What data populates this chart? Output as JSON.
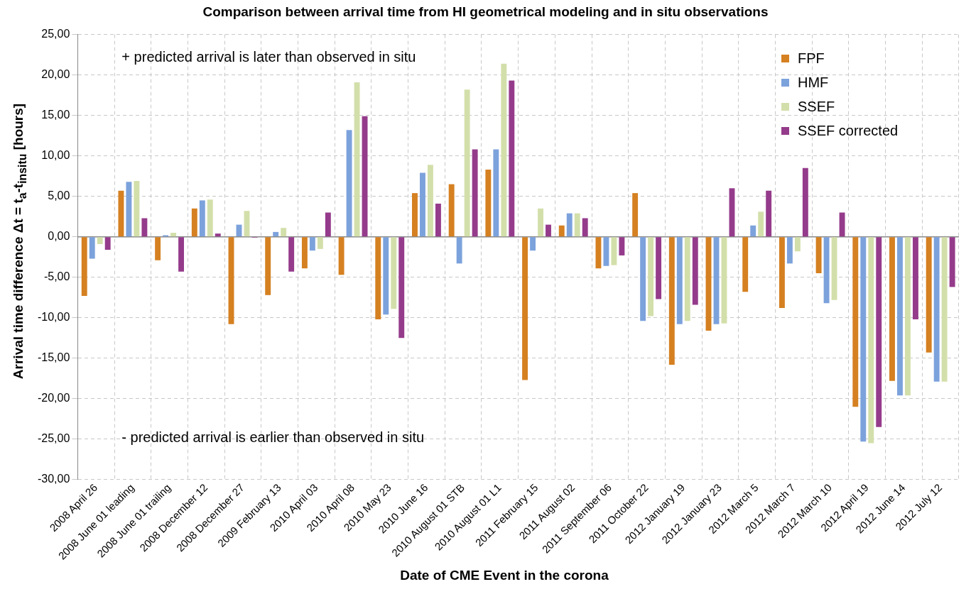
{
  "chart_data": {
    "type": "bar",
    "title": "Comparison between arrival time from HI geometrical modeling and in situ observations",
    "xlabel": "Date of CME Event in the corona",
    "ylabel": "Arrival time difference  Δt = t$_{a}$-t$_{insitu}$  [hours]",
    "categories": [
      "2008 April 26",
      "2008 June 01 leading",
      "2008 June 01 trailing",
      "2008 December 12",
      "2008 December 27",
      "2009 February 13",
      "2010 April 03",
      "2010 April 08",
      "2010 May 23",
      "2010 June 16",
      "2010 August 01 STB",
      "2010 August 01 L1",
      "2011 February 15",
      "2011 August 02",
      "2011 September 06",
      "2011 October 22",
      "2012 January 19",
      "2012 January 23",
      "2012 March 5",
      "2012 March 7",
      "2012 March 10",
      "2012 April 19",
      "2012 June 14",
      "2012 July 12"
    ],
    "series": [
      {
        "name": "FPF",
        "color": "#d58021",
        "values": [
          -7.3,
          5.7,
          -2.9,
          3.5,
          -10.8,
          -7.2,
          -3.9,
          -4.7,
          -10.2,
          5.4,
          6.5,
          8.3,
          -17.7,
          1.4,
          -3.9,
          5.4,
          -15.8,
          -11.6,
          -6.8,
          -8.8,
          -4.5,
          -21.0,
          -17.8,
          -14.3
        ]
      },
      {
        "name": "HMF",
        "color": "#7ca2dc",
        "values": [
          -2.7,
          6.8,
          0.2,
          4.5,
          1.5,
          0.6,
          -1.7,
          13.2,
          -9.6,
          7.9,
          -3.3,
          10.8,
          -1.7,
          2.9,
          -3.6,
          -10.4,
          -10.8,
          -10.8,
          1.4,
          -3.3,
          -8.2,
          -25.3,
          -19.6,
          -17.9
        ]
      },
      {
        "name": "SSEF",
        "color": "#d3dfaa",
        "values": [
          -0.9,
          6.9,
          0.5,
          4.6,
          3.2,
          1.1,
          -1.5,
          19.1,
          -8.9,
          8.9,
          18.2,
          21.4,
          3.5,
          2.9,
          -3.5,
          -9.8,
          -10.4,
          -10.7,
          3.1,
          -1.8,
          -7.8,
          -25.5,
          -19.6,
          -17.9
        ]
      },
      {
        "name": "SSEF corrected",
        "color": "#953b8b",
        "values": [
          -1.6,
          2.3,
          -4.3,
          0.4,
          -0.1,
          -4.3,
          3.0,
          14.9,
          -12.5,
          4.1,
          10.8,
          19.3,
          1.5,
          2.3,
          -2.3,
          -7.7,
          -8.4,
          6.0,
          5.7,
          8.5,
          3.0,
          -23.5,
          -10.2,
          -6.2
        ]
      }
    ],
    "ylim": [
      -30,
      25
    ],
    "yticks": [
      {
        "value": -30,
        "label": "-30,00"
      },
      {
        "value": -25,
        "label": "-25,00"
      },
      {
        "value": -20,
        "label": "-20,00"
      },
      {
        "value": -15,
        "label": "-15,00"
      },
      {
        "value": -10,
        "label": "-10,00"
      },
      {
        "value": -5,
        "label": "-5,00"
      },
      {
        "value": 0,
        "label": "0,00"
      },
      {
        "value": 5,
        "label": "5,00"
      },
      {
        "value": 10,
        "label": "10,00"
      },
      {
        "value": 15,
        "label": "15,00"
      },
      {
        "value": 20,
        "label": "20,00"
      },
      {
        "value": 25,
        "label": "25,00"
      }
    ],
    "annotations": [
      "+ predicted arrival is later than observed in situ",
      "- predicted arrival is earlier than observed in situ"
    ],
    "grid": true,
    "legend": "top right"
  }
}
